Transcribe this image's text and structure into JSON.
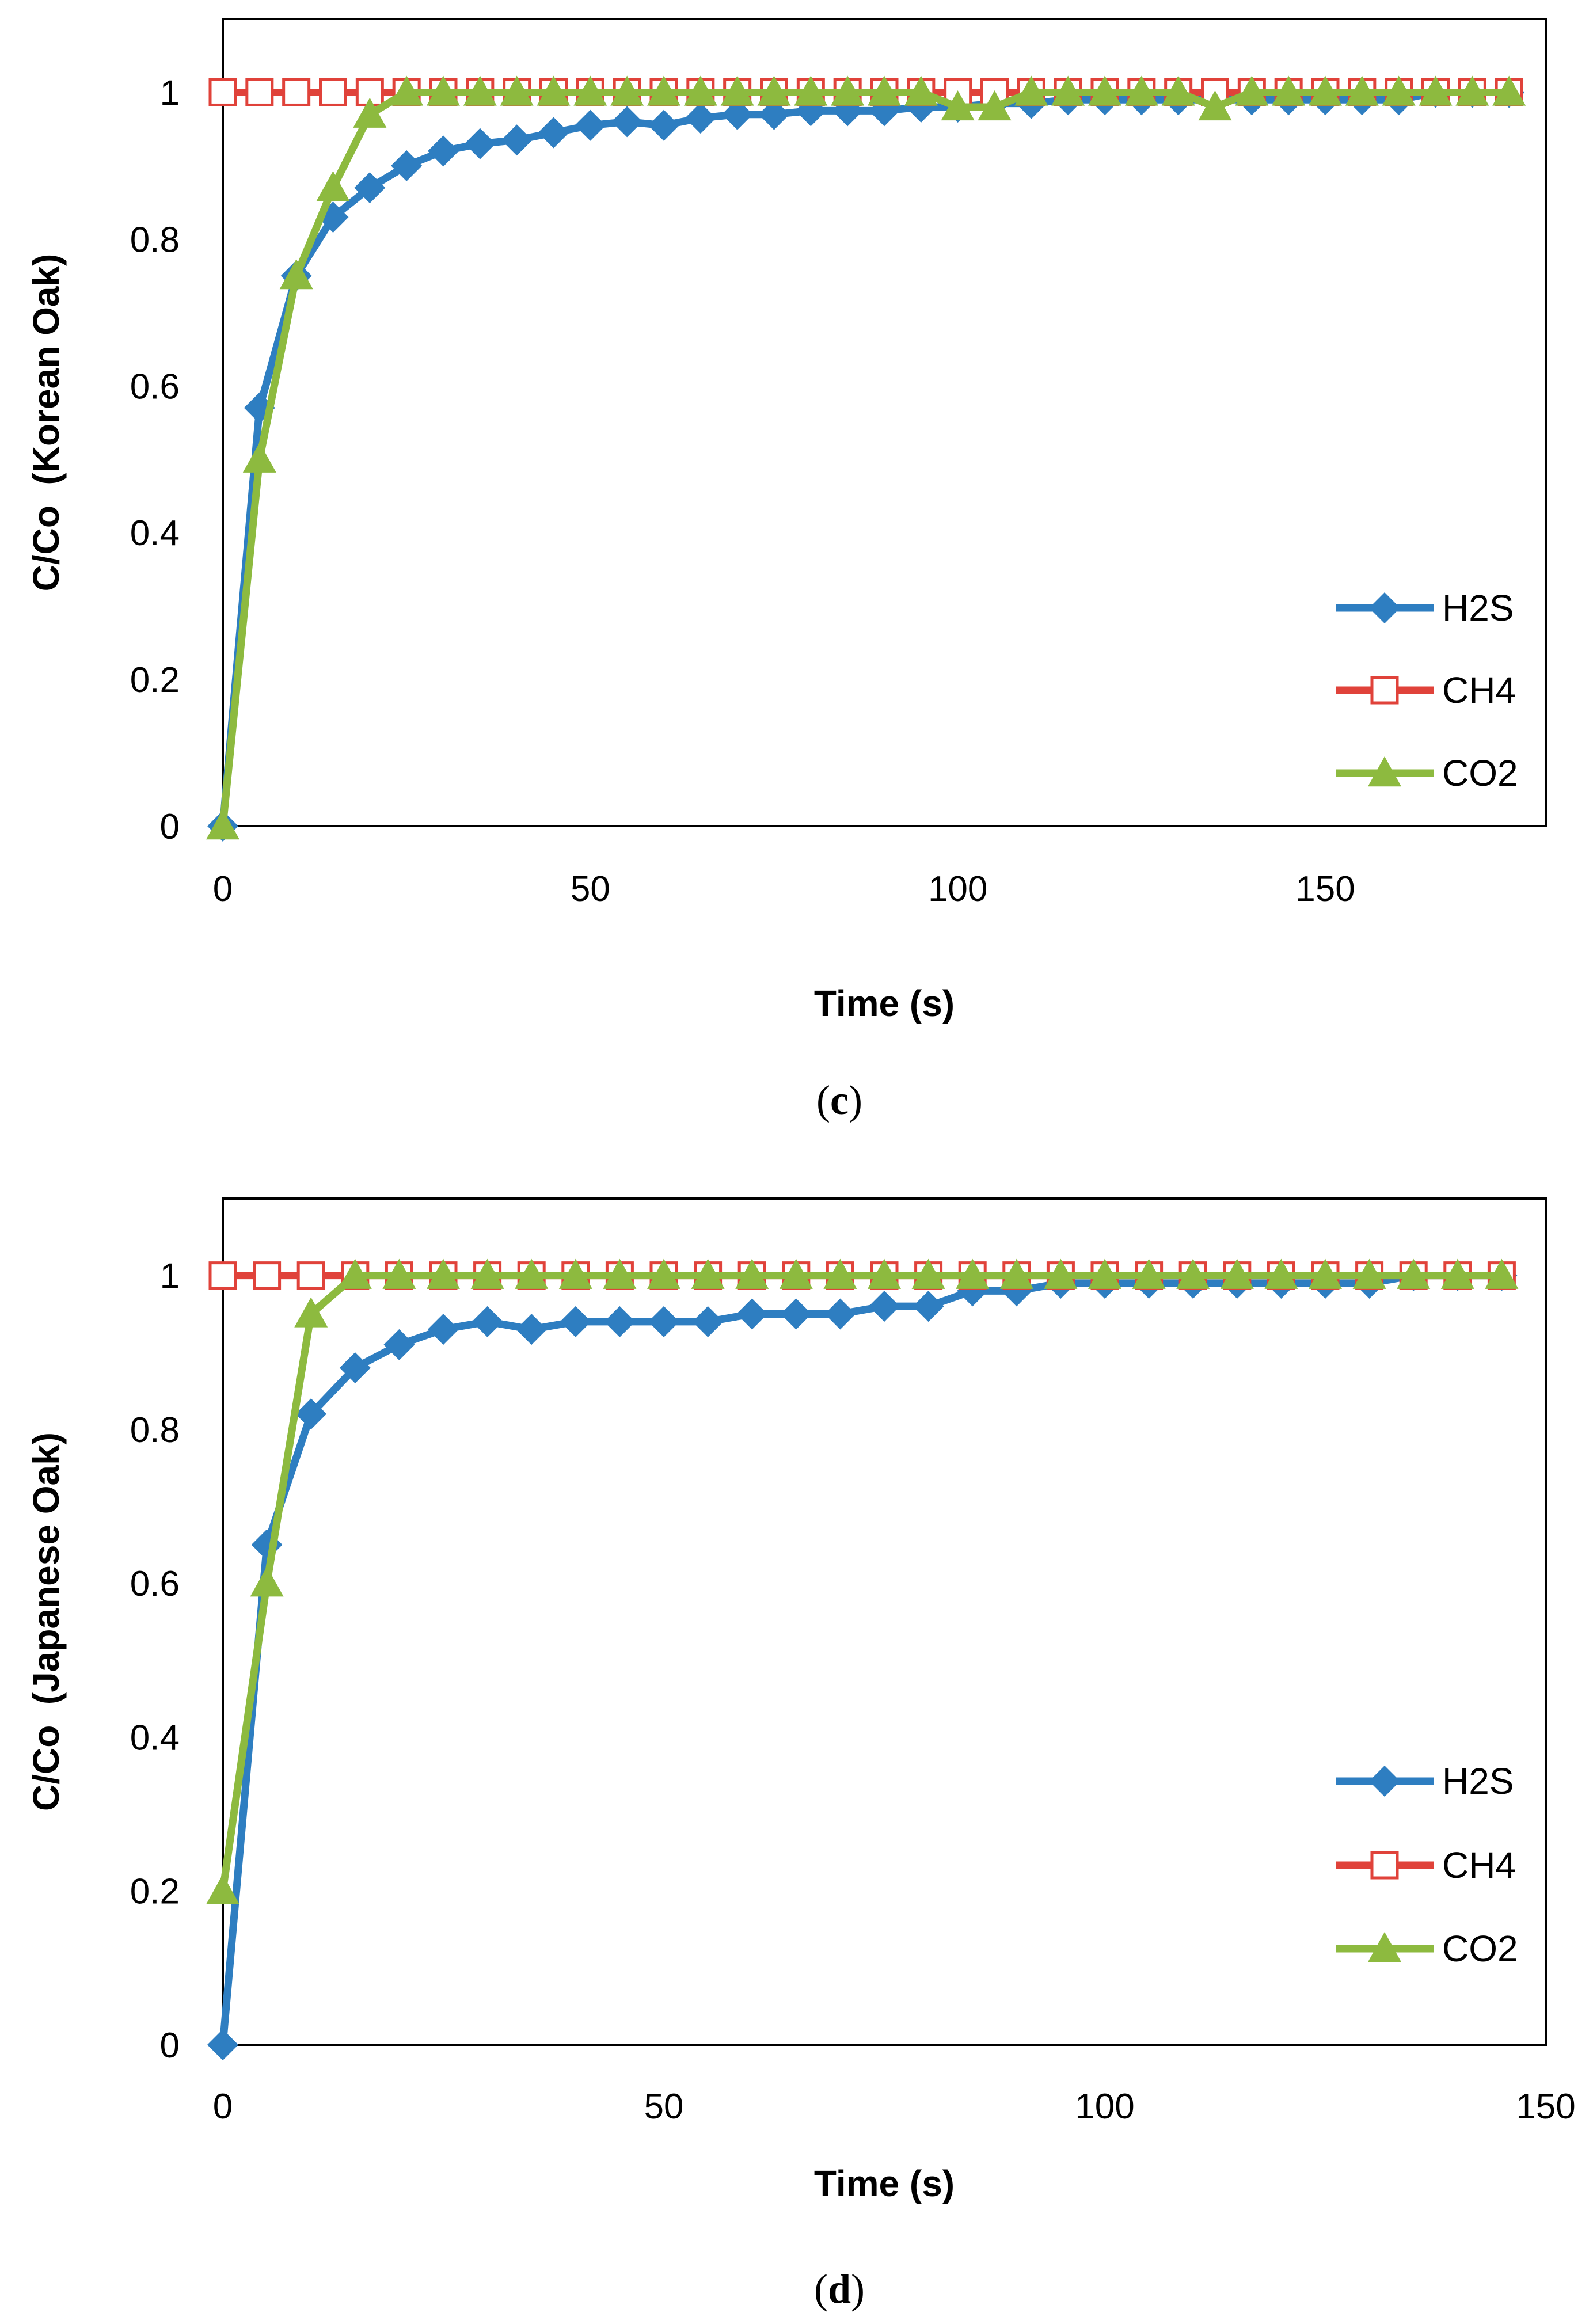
{
  "chart_data": [
    {
      "type": "line",
      "caption_open": "(",
      "caption_letter": "c",
      "caption_close": ")",
      "title": "",
      "xlabel": "Time (s)",
      "ylabel": "C/Co  (Korean Oak)",
      "xlim": [
        0,
        180
      ],
      "ylim": [
        0,
        1.1
      ],
      "xticks": [
        0,
        50,
        100,
        150
      ],
      "xtick_labels": [
        "0",
        "50",
        "100",
        "150"
      ],
      "yticks": [
        0,
        0.2,
        0.4,
        0.6,
        0.8,
        1
      ],
      "ytick_labels": [
        "0",
        "0.2",
        "0.4",
        "0.6",
        "0.8",
        "1"
      ],
      "grid": false,
      "legend_position": "bottom-right",
      "series": [
        {
          "name": "H2S",
          "color": "#2E7EC1",
          "marker": "diamond",
          "x": [
            0,
            5,
            10,
            15,
            20,
            25,
            30,
            35,
            40,
            45,
            50,
            55,
            60,
            65,
            70,
            75,
            80,
            85,
            90,
            95,
            100,
            105,
            110,
            115,
            120,
            125,
            130,
            135,
            140,
            145,
            150,
            155,
            160,
            165,
            170,
            175
          ],
          "y": [
            0,
            0.57,
            0.75,
            0.83,
            0.87,
            0.9,
            0.92,
            0.93,
            0.935,
            0.945,
            0.955,
            0.96,
            0.955,
            0.965,
            0.97,
            0.97,
            0.975,
            0.975,
            0.975,
            0.98,
            0.98,
            0.985,
            0.985,
            0.99,
            0.99,
            0.99,
            0.99,
            0.99,
            0.99,
            0.99,
            0.99,
            0.99,
            0.99,
            1,
            1,
            1
          ]
        },
        {
          "name": "CH4",
          "color": "#E0423A",
          "marker": "open-square",
          "x": [
            0,
            5,
            10,
            15,
            20,
            25,
            30,
            35,
            40,
            45,
            50,
            55,
            60,
            65,
            70,
            75,
            80,
            85,
            90,
            95,
            100,
            105,
            110,
            115,
            120,
            125,
            130,
            135,
            140,
            145,
            150,
            155,
            160,
            165,
            170,
            175
          ],
          "y": [
            1,
            1,
            1,
            1,
            1,
            1,
            1,
            1,
            1,
            1,
            1,
            1,
            1,
            1,
            1,
            1,
            1,
            1,
            1,
            1,
            1,
            1,
            1,
            1,
            1,
            1,
            1,
            1,
            1,
            1,
            1,
            1,
            1,
            1,
            1,
            1
          ]
        },
        {
          "name": "CO2",
          "color": "#8DBA3F",
          "marker": "triangle",
          "x": [
            0,
            5,
            10,
            15,
            20,
            25,
            30,
            35,
            40,
            45,
            50,
            55,
            60,
            65,
            70,
            75,
            80,
            85,
            90,
            95,
            100,
            105,
            110,
            115,
            120,
            125,
            130,
            135,
            140,
            145,
            150,
            155,
            160,
            165,
            170,
            175
          ],
          "y": [
            0,
            0.5,
            0.75,
            0.87,
            0.97,
            1,
            1,
            1,
            1,
            1,
            1,
            1,
            1,
            1,
            1,
            1,
            1,
            1,
            1,
            1,
            0.98,
            0.98,
            1,
            1,
            1,
            1,
            1,
            0.98,
            1,
            1,
            1,
            1,
            1,
            1,
            1,
            1
          ]
        }
      ]
    },
    {
      "type": "line",
      "caption_open": "(",
      "caption_letter": "d",
      "caption_close": ")",
      "title": "",
      "xlabel": "Time (s)",
      "ylabel": "C/Co  (Japanese Oak)",
      "xlim": [
        0,
        150
      ],
      "ylim": [
        0,
        1.1
      ],
      "xticks": [
        0,
        50,
        100,
        150
      ],
      "xtick_labels": [
        "0",
        "50",
        "100",
        "150"
      ],
      "yticks": [
        0,
        0.2,
        0.4,
        0.6,
        0.8,
        1
      ],
      "ytick_labels": [
        "0",
        "0.2",
        "0.4",
        "0.6",
        "0.8",
        "1"
      ],
      "grid": false,
      "legend_position": "bottom-right",
      "series": [
        {
          "name": "H2S",
          "color": "#2E7EC1",
          "marker": "diamond",
          "x": [
            0,
            5,
            10,
            15,
            20,
            25,
            30,
            35,
            40,
            45,
            50,
            55,
            60,
            65,
            70,
            75,
            80,
            85,
            90,
            95,
            100,
            105,
            110,
            115,
            120,
            125,
            130,
            135,
            140,
            145
          ],
          "y": [
            0,
            0.65,
            0.82,
            0.88,
            0.91,
            0.93,
            0.94,
            0.93,
            0.94,
            0.94,
            0.94,
            0.94,
            0.95,
            0.95,
            0.95,
            0.96,
            0.96,
            0.98,
            0.98,
            0.99,
            0.99,
            0.99,
            0.99,
            0.99,
            0.99,
            0.99,
            0.99,
            1,
            1,
            1
          ]
        },
        {
          "name": "CH4",
          "color": "#E0423A",
          "marker": "open-square",
          "x": [
            0,
            5,
            10,
            15,
            20,
            25,
            30,
            35,
            40,
            45,
            50,
            55,
            60,
            65,
            70,
            75,
            80,
            85,
            90,
            95,
            100,
            105,
            110,
            115,
            120,
            125,
            130,
            135,
            140,
            145
          ],
          "y": [
            1,
            1,
            1,
            1,
            1,
            1,
            1,
            1,
            1,
            1,
            1,
            1,
            1,
            1,
            1,
            1,
            1,
            1,
            1,
            1,
            1,
            1,
            1,
            1,
            1,
            1,
            1,
            1,
            1,
            1
          ]
        },
        {
          "name": "CO2",
          "color": "#8DBA3F",
          "marker": "triangle",
          "x": [
            0,
            5,
            10,
            15,
            20,
            25,
            30,
            35,
            40,
            45,
            50,
            55,
            60,
            65,
            70,
            75,
            80,
            85,
            90,
            95,
            100,
            105,
            110,
            115,
            120,
            125,
            130,
            135,
            140,
            145
          ],
          "y": [
            0.2,
            0.6,
            0.95,
            1,
            1,
            1,
            1,
            1,
            1,
            1,
            1,
            1,
            1,
            1,
            1,
            1,
            1,
            1,
            1,
            1,
            1,
            1,
            1,
            1,
            1,
            1,
            1,
            1,
            1,
            1
          ]
        }
      ]
    }
  ]
}
